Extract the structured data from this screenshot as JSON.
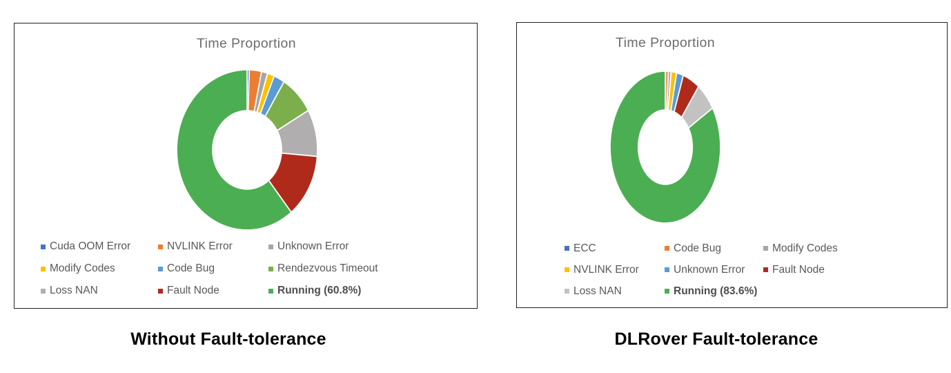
{
  "chart_data": [
    {
      "type": "pie",
      "subtype": "donut",
      "title": "Time Proportion",
      "caption": "Without Fault-tolerance",
      "unit": "%",
      "legend_position": "bottom",
      "legend_columns": 3,
      "start_angle_deg": 0,
      "direction": "clockwise",
      "hole_ratio": 0.49,
      "slices": [
        {
          "label": "Cuda OOM Error",
          "value": 0.5,
          "color": "#4472C4"
        },
        {
          "label": "NVLINK Error",
          "value": 2.8,
          "color": "#ED7D31"
        },
        {
          "label": "Unknown Error",
          "value": 1.4,
          "color": "#A6A6A6"
        },
        {
          "label": "Modify Codes",
          "value": 1.6,
          "color": "#FFC000"
        },
        {
          "label": "Code Bug",
          "value": 2.5,
          "color": "#5B9BD5"
        },
        {
          "label": "Rendezvous Timeout",
          "value": 8.0,
          "color": "#7CAF4C"
        },
        {
          "label": "Loss NAN",
          "value": 9.5,
          "color": "#B0AEAE"
        },
        {
          "label": "Fault Node",
          "value": 12.9,
          "color": "#B02A1C"
        },
        {
          "label": "Running",
          "value": 60.8,
          "color": "#4CAE52",
          "legend_label": "Running (60.8%)",
          "bold": true
        }
      ]
    },
    {
      "type": "pie",
      "subtype": "donut",
      "title": "Time Proportion",
      "caption": "DLRover Fault-tolerance",
      "unit": "%",
      "legend_position": "bottom",
      "legend_columns": 3,
      "start_angle_deg": 0,
      "direction": "clockwise",
      "hole_ratio": 0.49,
      "slices": [
        {
          "label": "ECC",
          "value": 0.1,
          "color": "#4472C4"
        },
        {
          "label": "Code Bug",
          "value": 0.8,
          "color": "#ED7D31"
        },
        {
          "label": "Modify Codes",
          "value": 0.8,
          "color": "#A6A6A6"
        },
        {
          "label": "NVLINK Error",
          "value": 1.6,
          "color": "#FFC000"
        },
        {
          "label": "Unknown Error",
          "value": 2.0,
          "color": "#5B9BD5"
        },
        {
          "label": "Fault Node",
          "value": 5.0,
          "color": "#B02A1C"
        },
        {
          "label": "Loss NAN",
          "value": 6.1,
          "color": "#C3C2C2"
        },
        {
          "label": "Running",
          "value": 83.6,
          "color": "#4CAE52",
          "legend_label": "Running (83.6%)",
          "bold": true
        }
      ]
    }
  ]
}
